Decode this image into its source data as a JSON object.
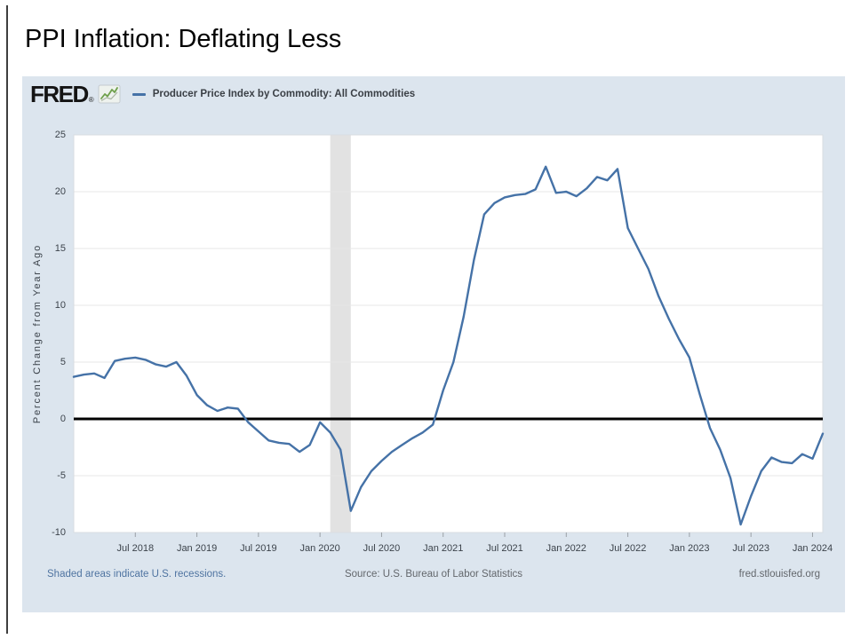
{
  "slide": {
    "title": "PPI Inflation: Deflating Less"
  },
  "fred": {
    "logo_text": "FRED",
    "logo_mark": "®",
    "legend_label": "Producer Price Index by Commodity: All Commodities",
    "footer_left": "Shaded areas indicate U.S. recessions.",
    "footer_center": "Source: U.S. Bureau of Labor Statistics",
    "footer_right": "fred.stlouisfed.org"
  },
  "colors": {
    "accent_line": "#4572a7",
    "chart_bg": "#dce5ee",
    "plot_bg": "#ffffff",
    "grid": "#e7e7e7",
    "plot_border": "#d9dde2",
    "recession_band": "#e2e2e2",
    "zero_line": "#000000",
    "axis_text": "#3c434b",
    "tick_mark": "#9aa0a6",
    "footer_link": "#4f74a1",
    "footer_text": "#63676c"
  },
  "chart_data": {
    "type": "line",
    "title": "Producer Price Index by Commodity: All Commodities",
    "ylabel": "Percent Change from Year Ago",
    "ylim": [
      -10,
      25
    ],
    "yticks": [
      25,
      20,
      15,
      10,
      5,
      0,
      -5,
      -10
    ],
    "zero_line": 0,
    "grid": true,
    "legend_position": "top-left",
    "x_frequency": "monthly",
    "x_start": "2018-01",
    "x_end": "2024-02",
    "xtick_labels": [
      "Jul 2018",
      "Jan 2019",
      "Jul 2019",
      "Jan 2020",
      "Jul 2020",
      "Jan 2021",
      "Jul 2021",
      "Jan 2022",
      "Jul 2022",
      "Jan 2023",
      "Jul 2023",
      "Jan 2024"
    ],
    "xtick_month_indices": [
      6,
      12,
      18,
      24,
      30,
      36,
      42,
      48,
      54,
      60,
      66,
      72
    ],
    "recession_bands": [
      {
        "start": "2020-02",
        "end": "2020-04",
        "start_index": 25,
        "end_index": 27
      }
    ],
    "series": [
      {
        "name": "Producer Price Index by Commodity: All Commodities",
        "color": "#4572a7",
        "values": [
          3.7,
          3.9,
          4.0,
          3.6,
          5.1,
          5.3,
          5.4,
          5.2,
          4.8,
          4.6,
          5.0,
          3.8,
          2.1,
          1.2,
          0.7,
          1.0,
          0.9,
          -0.3,
          -1.1,
          -1.9,
          -2.1,
          -2.2,
          -2.9,
          -2.3,
          -0.3,
          -1.2,
          -2.7,
          -8.1,
          -6.0,
          -4.6,
          -3.7,
          -2.9,
          -2.3,
          -1.7,
          -1.2,
          -0.5,
          2.5,
          5.0,
          9.0,
          14.0,
          18.0,
          19.0,
          19.5,
          19.7,
          19.8,
          20.2,
          22.2,
          19.9,
          20.0,
          19.6,
          20.3,
          21.3,
          21.0,
          22.0,
          16.8,
          15.0,
          13.2,
          10.8,
          8.8,
          7.0,
          5.4,
          2.2,
          -0.8,
          -2.7,
          -5.2,
          -9.3,
          -6.8,
          -4.6,
          -3.4,
          -3.8,
          -3.9,
          -3.1,
          -3.5,
          -1.3
        ]
      }
    ]
  }
}
